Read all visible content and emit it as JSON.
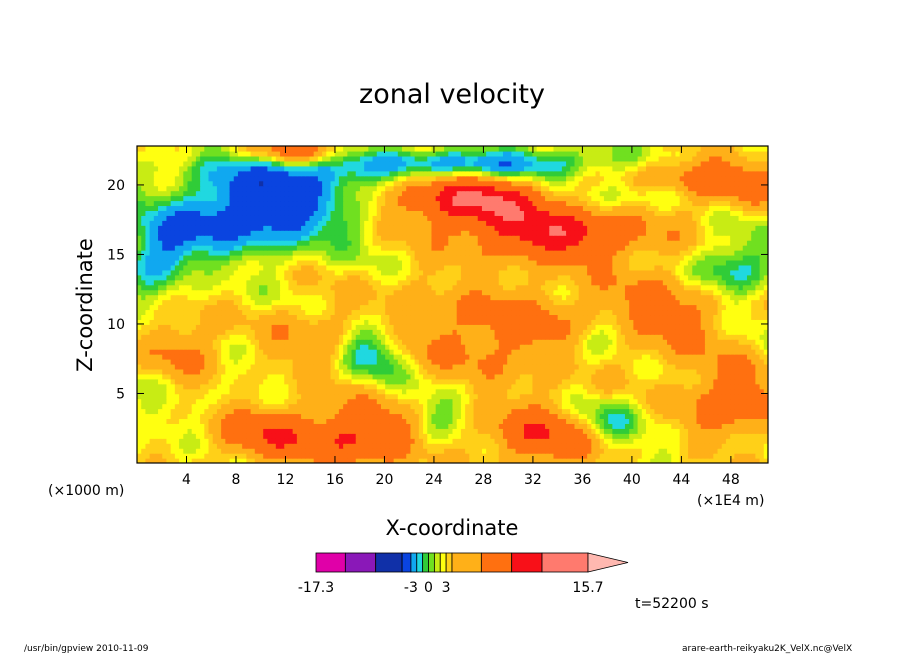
{
  "chart_data": {
    "type": "heatmap",
    "title": "zonal velocity",
    "xlabel": "X-coordinate",
    "ylabel": "Z-coordinate",
    "x_unit": "(×1E4 m)",
    "y_unit": "(×1000 m)",
    "x_ticks": [
      "4",
      "8",
      "12",
      "16",
      "20",
      "24",
      "28",
      "32",
      "36",
      "40",
      "44",
      "48"
    ],
    "x_tick_values": [
      4,
      8,
      12,
      16,
      20,
      24,
      28,
      32,
      36,
      40,
      44,
      48
    ],
    "xlim": [
      0,
      51
    ],
    "y_ticks": [
      "5",
      "10",
      "15",
      "20"
    ],
    "y_tick_values": [
      5,
      10,
      15,
      20
    ],
    "ylim": [
      0,
      22.8
    ],
    "colorbar": {
      "levels": [
        -17.3,
        -13,
        -9,
        -5,
        -3,
        -2,
        -1,
        0,
        1,
        2,
        3,
        5,
        9,
        12,
        15.7
      ],
      "tick_labels": [
        "-17.3",
        "-3",
        "0",
        "3",
        "15.7"
      ],
      "colors": [
        "#e000a8",
        "#8a18b8",
        "#1030a8",
        "#0a44e0",
        "#10a8f0",
        "#20d8e0",
        "#30cc38",
        "#70e020",
        "#c8ec14",
        "#ffff10",
        "#ffd018",
        "#ffb018",
        "#ff7010",
        "#f81018",
        "#ff7a6e",
        "#ffb8b0"
      ]
    },
    "annotations": [
      "t=52200 s"
    ]
  },
  "footer": {
    "left": "/usr/bin/gpview   2010-11-09",
    "right": "arare-earth-reikyaku2K_VelX.nc@VelX"
  }
}
